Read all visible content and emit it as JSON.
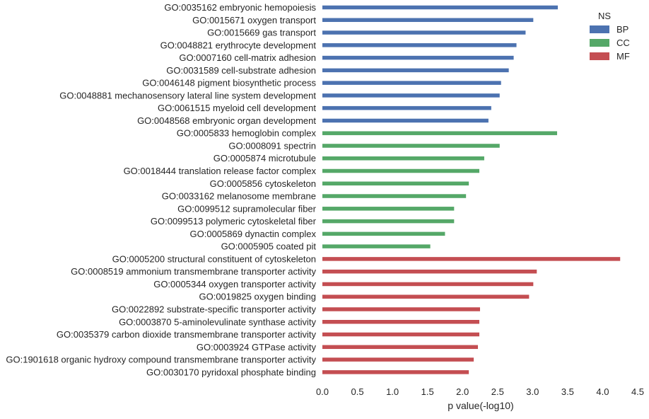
{
  "chart_data": {
    "type": "bar",
    "orientation": "horizontal",
    "xlabel": "p value(-log10)",
    "ylabel": "",
    "title": "",
    "xlim": [
      0,
      4.5
    ],
    "x_ticks": [
      "0.0",
      "0.5",
      "1.0",
      "1.5",
      "2.0",
      "2.5",
      "3.0",
      "3.5",
      "4.0",
      "4.5"
    ],
    "grid": false,
    "legend": {
      "title": "NS",
      "position": "top-right",
      "entries": [
        {
          "name": "BP",
          "color": "#4c72b0"
        },
        {
          "name": "CC",
          "color": "#55a868"
        },
        {
          "name": "MF",
          "color": "#c44e52"
        }
      ]
    },
    "bars": [
      {
        "label": "GO:0035162 embryonic hemopoiesis",
        "value": 3.36,
        "ns": "BP"
      },
      {
        "label": "GO:0015671 oxygen transport",
        "value": 3.01,
        "ns": "BP"
      },
      {
        "label": "GO:0015669 gas transport",
        "value": 2.9,
        "ns": "BP"
      },
      {
        "label": "GO:0048821 erythrocyte development",
        "value": 2.77,
        "ns": "BP"
      },
      {
        "label": "GO:0007160 cell-matrix adhesion",
        "value": 2.73,
        "ns": "BP"
      },
      {
        "label": "GO:0031589 cell-substrate adhesion",
        "value": 2.66,
        "ns": "BP"
      },
      {
        "label": "GO:0046148 pigment biosynthetic process",
        "value": 2.55,
        "ns": "BP"
      },
      {
        "label": "GO:0048881 mechanosensory lateral line system development",
        "value": 2.53,
        "ns": "BP"
      },
      {
        "label": "GO:0061515 myeloid cell development",
        "value": 2.41,
        "ns": "BP"
      },
      {
        "label": "GO:0048568 embryonic organ development",
        "value": 2.37,
        "ns": "BP"
      },
      {
        "label": "GO:0005833 hemoglobin complex",
        "value": 3.35,
        "ns": "CC"
      },
      {
        "label": "GO:0008091 spectrin",
        "value": 2.53,
        "ns": "CC"
      },
      {
        "label": "GO:0005874 microtubule",
        "value": 2.31,
        "ns": "CC"
      },
      {
        "label": "GO:0018444 translation release factor complex",
        "value": 2.24,
        "ns": "CC"
      },
      {
        "label": "GO:0005856 cytoskeleton",
        "value": 2.09,
        "ns": "CC"
      },
      {
        "label": "GO:0033162 melanosome membrane",
        "value": 2.05,
        "ns": "CC"
      },
      {
        "label": "GO:0099512 supramolecular fiber",
        "value": 1.88,
        "ns": "CC"
      },
      {
        "label": "GO:0099513 polymeric cytoskeletal fiber",
        "value": 1.88,
        "ns": "CC"
      },
      {
        "label": "GO:0005869 dynactin complex",
        "value": 1.75,
        "ns": "CC"
      },
      {
        "label": "GO:0005905 coated pit",
        "value": 1.54,
        "ns": "CC"
      },
      {
        "label": "GO:0005200 structural constituent of cytoskeleton",
        "value": 4.25,
        "ns": "MF"
      },
      {
        "label": "GO:0008519 ammonium transmembrane transporter activity",
        "value": 3.06,
        "ns": "MF"
      },
      {
        "label": "GO:0005344 oxygen transporter activity",
        "value": 3.01,
        "ns": "MF"
      },
      {
        "label": "GO:0019825 oxygen binding",
        "value": 2.95,
        "ns": "MF"
      },
      {
        "label": "GO:0022892 substrate-specific transporter activity",
        "value": 2.25,
        "ns": "MF"
      },
      {
        "label": "GO:0003870 5-aminolevulinate synthase activity",
        "value": 2.24,
        "ns": "MF"
      },
      {
        "label": "GO:0035379 carbon dioxide transmembrane transporter activity",
        "value": 2.24,
        "ns": "MF"
      },
      {
        "label": "GO:0003924 GTPase activity",
        "value": 2.22,
        "ns": "MF"
      },
      {
        "label": "GO:1901618 organic hydroxy compound transmembrane transporter activity",
        "value": 2.16,
        "ns": "MF"
      },
      {
        "label": "GO:0030170 pyridoxal phosphate binding",
        "value": 2.09,
        "ns": "MF"
      }
    ]
  }
}
